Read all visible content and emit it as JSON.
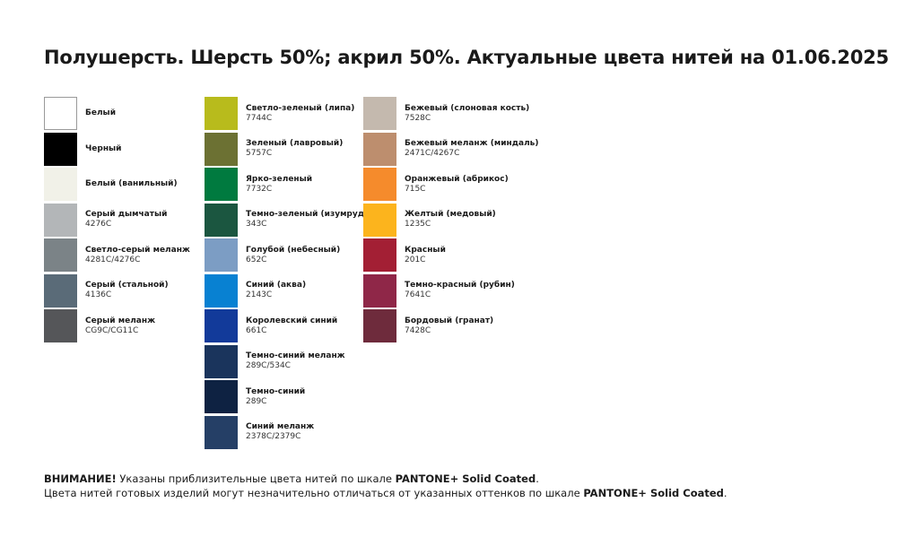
{
  "title": "Полушерсть. Шерсть 50%; акрил 50%. Актуальные цвета нитей на 01.06.2025",
  "columns": [
    [
      {
        "name": "Белый",
        "code": "",
        "color": "#ffffff",
        "bordered": true
      },
      {
        "name": "Черный",
        "code": "",
        "color": "#000000"
      },
      {
        "name": "Белый (ванильный)",
        "code": "",
        "color": "#f1f1e8"
      },
      {
        "name": "Серый дымчатый",
        "code": "4276C",
        "color": "#b3b6b8"
      },
      {
        "name": "Светло-серый меланж",
        "code": "4281C/4276C",
        "color": "#7b8387"
      },
      {
        "name": "Серый (стальной)",
        "code": "4136C",
        "color": "#5a6b78"
      },
      {
        "name": "Серый меланж",
        "code": "CG9C/CG11C",
        "color": "#555659"
      }
    ],
    [
      {
        "name": "Светло-зеленый (липа)",
        "code": "7744C",
        "color": "#b8bb1c"
      },
      {
        "name": "Зеленый (лавровый)",
        "code": "5757C",
        "color": "#6c7133"
      },
      {
        "name": "Ярко-зеленый",
        "code": "7732C",
        "color": "#007a3f"
      },
      {
        "name": "Темно-зеленый (изумруд)",
        "code": "343C",
        "color": "#1b5640"
      },
      {
        "name": "Голубой (небесный)",
        "code": "652C",
        "color": "#7c9dc4"
      },
      {
        "name": "Синий (аква)",
        "code": "2143C",
        "color": "#0881d2"
      },
      {
        "name": "Королевский синий",
        "code": "661C",
        "color": "#123a9a"
      },
      {
        "name": "Темно-синий меланж",
        "code": "289C/534C",
        "color": "#1a345c"
      },
      {
        "name": "Темно-синий",
        "code": "289C",
        "color": "#0e2242"
      },
      {
        "name": "Синий меланж",
        "code": "2378C/2379C",
        "color": "#253f66"
      }
    ],
    [
      {
        "name": "Бежевый (слоновая кость)",
        "code": "7528C",
        "color": "#c4b9ae"
      },
      {
        "name": "Бежевый меланж (миндаль)",
        "code": "2471C/4267C",
        "color": "#bd8e6e"
      },
      {
        "name": "Оранжевый (абрикос)",
        "code": "715C",
        "color": "#f58b2c"
      },
      {
        "name": "Желтый (медовый)",
        "code": "1235C",
        "color": "#fcb41d"
      },
      {
        "name": "Красный",
        "code": "201C",
        "color": "#a31f34"
      },
      {
        "name": "Темно-красный (рубин)",
        "code": "7641C",
        "color": "#8f2748"
      },
      {
        "name": "Бордовый (гранат)",
        "code": "7428C",
        "color": "#6e2b3c"
      }
    ]
  ],
  "footer": {
    "line1": {
      "bold1": "ВНИМАНИЕ!",
      "text": " Указаны приблизительные цвета нитей по шкале ",
      "bold2": "PANTONE+ Solid Coated",
      "end": "."
    },
    "line2": {
      "text": "Цвета нитей готовых изделий могут незначительно отличаться от указанных оттенков по шкале ",
      "bold2": "PANTONE+ Solid Coated",
      "end": "."
    }
  }
}
